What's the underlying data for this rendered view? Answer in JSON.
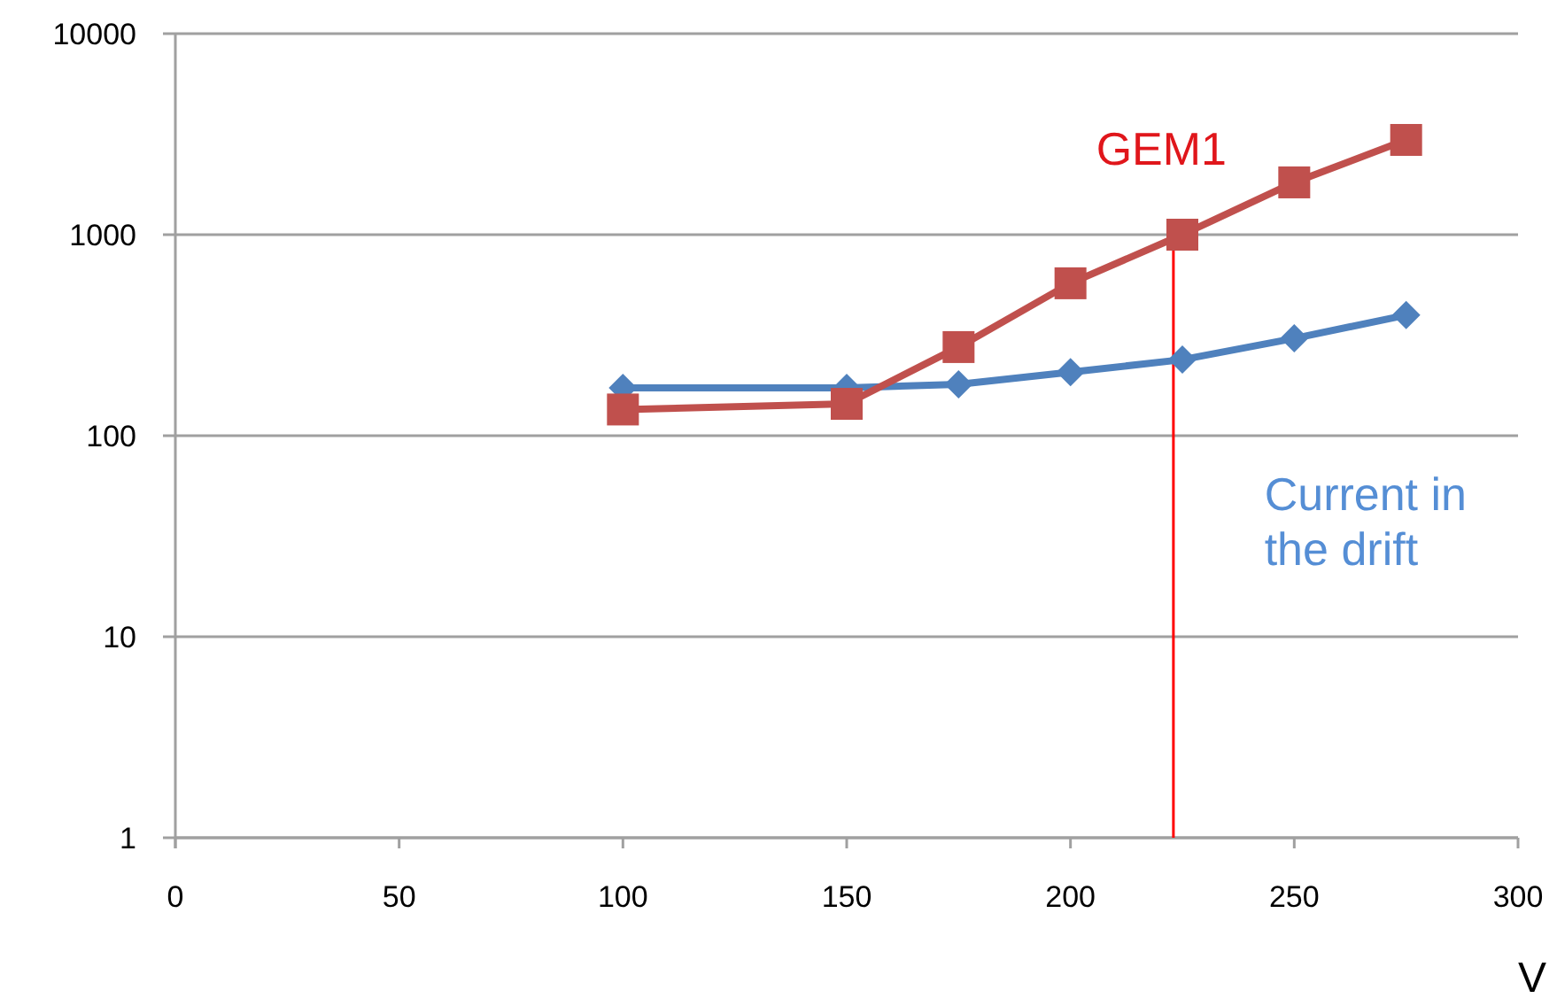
{
  "chart_data": {
    "type": "line",
    "xlabel": "V",
    "x": [
      100,
      150,
      175,
      200,
      225,
      250,
      275
    ],
    "series": [
      {
        "name": "Current in the drift",
        "color": "#4f81bd",
        "marker": "diamond",
        "values": [
          173,
          173,
          180,
          207,
          239,
          305,
          398
        ]
      },
      {
        "name": "GEM1",
        "color": "#c0504d",
        "marker": "square",
        "values": [
          135,
          144,
          276,
          573,
          1000,
          1820,
          2960
        ]
      }
    ],
    "log": "y",
    "xlim": [
      0,
      300
    ],
    "xticks": [
      0,
      50,
      100,
      150,
      200,
      250,
      300
    ],
    "ylim": [
      1,
      10000
    ],
    "yticks": [
      1,
      10,
      100,
      1000,
      10000
    ],
    "grid": "y",
    "line_style": "solid",
    "ref_lines": [
      {
        "axis": "x",
        "value": 223,
        "color": "#ff0000"
      }
    ]
  }
}
